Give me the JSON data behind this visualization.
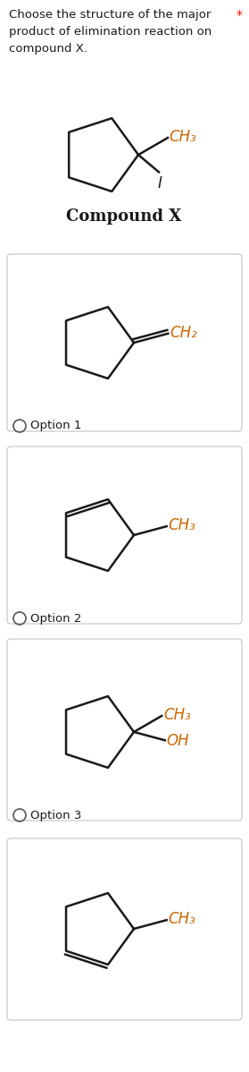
{
  "bg_color": "#ffffff",
  "title_text": "Choose the structure of the major\nproduct of elimination reaction on\ncompound X.",
  "star_color": "#ff0000",
  "compound_x_label": "Compound X",
  "option_labels": [
    "Option 1",
    "Option 2",
    "Option 3"
  ],
  "line_color": "#1a1a1a",
  "text_color": "#1a1a1a",
  "ch3_color": "#cc6600",
  "ch2_color": "#cc6600",
  "oh_color": "#cc6600",
  "title_fontsize": 9.5,
  "label_fontsize": 9.5,
  "struct_fontsize": 12,
  "compound_fontsize": 13,
  "lw": 1.8,
  "r_pent": 42
}
